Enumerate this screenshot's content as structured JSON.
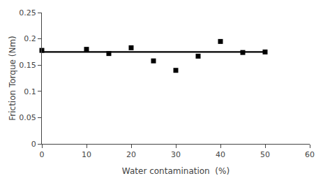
{
  "chart_data": {
    "type": "scatter",
    "xlabel": "Water contamination  (%)",
    "ylabel": "Friction Torque (Nm)",
    "series": [
      {
        "type": "line",
        "color": "black",
        "line_style": "solid",
        "x": [
          0,
          50
        ],
        "values": [
          0.175,
          0.175
        ]
      },
      {
        "type": "scatter",
        "color": "black",
        "marker": "square",
        "x": [
          0,
          10,
          15,
          20,
          25,
          30,
          35,
          40,
          45,
          50
        ],
        "values": [
          0.178,
          0.18,
          0.172,
          0.183,
          0.158,
          0.14,
          0.167,
          0.195,
          0.174,
          0.175
        ]
      }
    ],
    "xlim": [
      0,
      60
    ],
    "ylim": [
      0,
      0.25
    ],
    "xticks": [
      0,
      10,
      20,
      30,
      40,
      50,
      60
    ],
    "yticks": [
      0,
      0.05,
      0.1,
      0.15,
      0.2,
      0.25
    ],
    "grid": false
  }
}
